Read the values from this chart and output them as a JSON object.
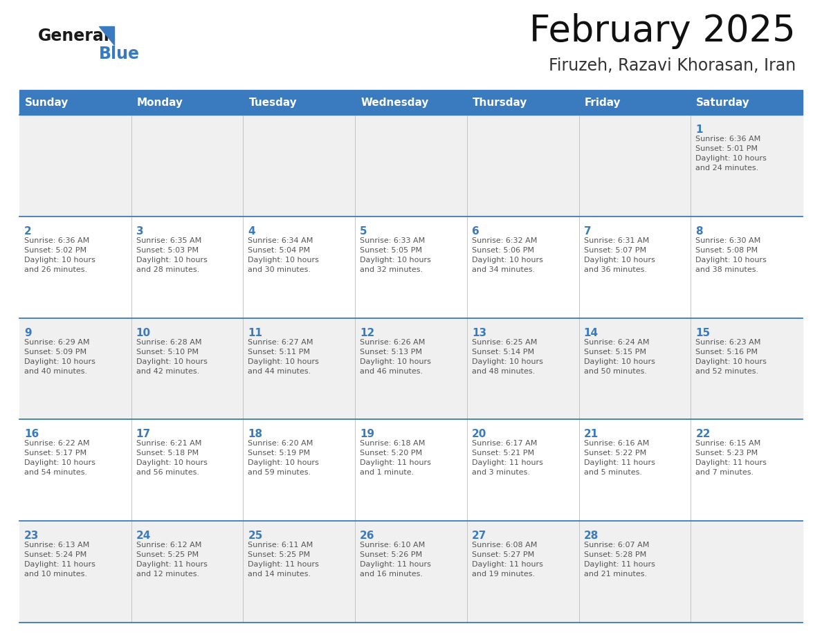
{
  "title": "February 2025",
  "subtitle": "Firuzeh, Razavi Khorasan, Iran",
  "header_bg": "#3a7abf",
  "header_text_color": "#ffffff",
  "cell_bg_light": "#f0f0f0",
  "cell_bg_white": "#ffffff",
  "day_number_color": "#3a7abf",
  "text_color": "#555555",
  "grid_line_color": "#3a7abf",
  "days_of_week": [
    "Sunday",
    "Monday",
    "Tuesday",
    "Wednesday",
    "Thursday",
    "Friday",
    "Saturday"
  ],
  "weeks": [
    [
      {
        "day": null,
        "info": null
      },
      {
        "day": null,
        "info": null
      },
      {
        "day": null,
        "info": null
      },
      {
        "day": null,
        "info": null
      },
      {
        "day": null,
        "info": null
      },
      {
        "day": null,
        "info": null
      },
      {
        "day": "1",
        "info": "Sunrise: 6:36 AM\nSunset: 5:01 PM\nDaylight: 10 hours\nand 24 minutes."
      }
    ],
    [
      {
        "day": "2",
        "info": "Sunrise: 6:36 AM\nSunset: 5:02 PM\nDaylight: 10 hours\nand 26 minutes."
      },
      {
        "day": "3",
        "info": "Sunrise: 6:35 AM\nSunset: 5:03 PM\nDaylight: 10 hours\nand 28 minutes."
      },
      {
        "day": "4",
        "info": "Sunrise: 6:34 AM\nSunset: 5:04 PM\nDaylight: 10 hours\nand 30 minutes."
      },
      {
        "day": "5",
        "info": "Sunrise: 6:33 AM\nSunset: 5:05 PM\nDaylight: 10 hours\nand 32 minutes."
      },
      {
        "day": "6",
        "info": "Sunrise: 6:32 AM\nSunset: 5:06 PM\nDaylight: 10 hours\nand 34 minutes."
      },
      {
        "day": "7",
        "info": "Sunrise: 6:31 AM\nSunset: 5:07 PM\nDaylight: 10 hours\nand 36 minutes."
      },
      {
        "day": "8",
        "info": "Sunrise: 6:30 AM\nSunset: 5:08 PM\nDaylight: 10 hours\nand 38 minutes."
      }
    ],
    [
      {
        "day": "9",
        "info": "Sunrise: 6:29 AM\nSunset: 5:09 PM\nDaylight: 10 hours\nand 40 minutes."
      },
      {
        "day": "10",
        "info": "Sunrise: 6:28 AM\nSunset: 5:10 PM\nDaylight: 10 hours\nand 42 minutes."
      },
      {
        "day": "11",
        "info": "Sunrise: 6:27 AM\nSunset: 5:11 PM\nDaylight: 10 hours\nand 44 minutes."
      },
      {
        "day": "12",
        "info": "Sunrise: 6:26 AM\nSunset: 5:13 PM\nDaylight: 10 hours\nand 46 minutes."
      },
      {
        "day": "13",
        "info": "Sunrise: 6:25 AM\nSunset: 5:14 PM\nDaylight: 10 hours\nand 48 minutes."
      },
      {
        "day": "14",
        "info": "Sunrise: 6:24 AM\nSunset: 5:15 PM\nDaylight: 10 hours\nand 50 minutes."
      },
      {
        "day": "15",
        "info": "Sunrise: 6:23 AM\nSunset: 5:16 PM\nDaylight: 10 hours\nand 52 minutes."
      }
    ],
    [
      {
        "day": "16",
        "info": "Sunrise: 6:22 AM\nSunset: 5:17 PM\nDaylight: 10 hours\nand 54 minutes."
      },
      {
        "day": "17",
        "info": "Sunrise: 6:21 AM\nSunset: 5:18 PM\nDaylight: 10 hours\nand 56 minutes."
      },
      {
        "day": "18",
        "info": "Sunrise: 6:20 AM\nSunset: 5:19 PM\nDaylight: 10 hours\nand 59 minutes."
      },
      {
        "day": "19",
        "info": "Sunrise: 6:18 AM\nSunset: 5:20 PM\nDaylight: 11 hours\nand 1 minute."
      },
      {
        "day": "20",
        "info": "Sunrise: 6:17 AM\nSunset: 5:21 PM\nDaylight: 11 hours\nand 3 minutes."
      },
      {
        "day": "21",
        "info": "Sunrise: 6:16 AM\nSunset: 5:22 PM\nDaylight: 11 hours\nand 5 minutes."
      },
      {
        "day": "22",
        "info": "Sunrise: 6:15 AM\nSunset: 5:23 PM\nDaylight: 11 hours\nand 7 minutes."
      }
    ],
    [
      {
        "day": "23",
        "info": "Sunrise: 6:13 AM\nSunset: 5:24 PM\nDaylight: 11 hours\nand 10 minutes."
      },
      {
        "day": "24",
        "info": "Sunrise: 6:12 AM\nSunset: 5:25 PM\nDaylight: 11 hours\nand 12 minutes."
      },
      {
        "day": "25",
        "info": "Sunrise: 6:11 AM\nSunset: 5:25 PM\nDaylight: 11 hours\nand 14 minutes."
      },
      {
        "day": "26",
        "info": "Sunrise: 6:10 AM\nSunset: 5:26 PM\nDaylight: 11 hours\nand 16 minutes."
      },
      {
        "day": "27",
        "info": "Sunrise: 6:08 AM\nSunset: 5:27 PM\nDaylight: 11 hours\nand 19 minutes."
      },
      {
        "day": "28",
        "info": "Sunrise: 6:07 AM\nSunset: 5:28 PM\nDaylight: 11 hours\nand 21 minutes."
      },
      {
        "day": null,
        "info": null
      }
    ]
  ],
  "logo_general_color": "#1a1a1a",
  "logo_blue_color": "#3a7abf",
  "title_fontsize": 38,
  "subtitle_fontsize": 17,
  "header_fontsize": 11,
  "day_number_fontsize": 11,
  "cell_text_fontsize": 8.0,
  "fig_width": 11.88,
  "fig_height": 9.18,
  "dpi": 100
}
